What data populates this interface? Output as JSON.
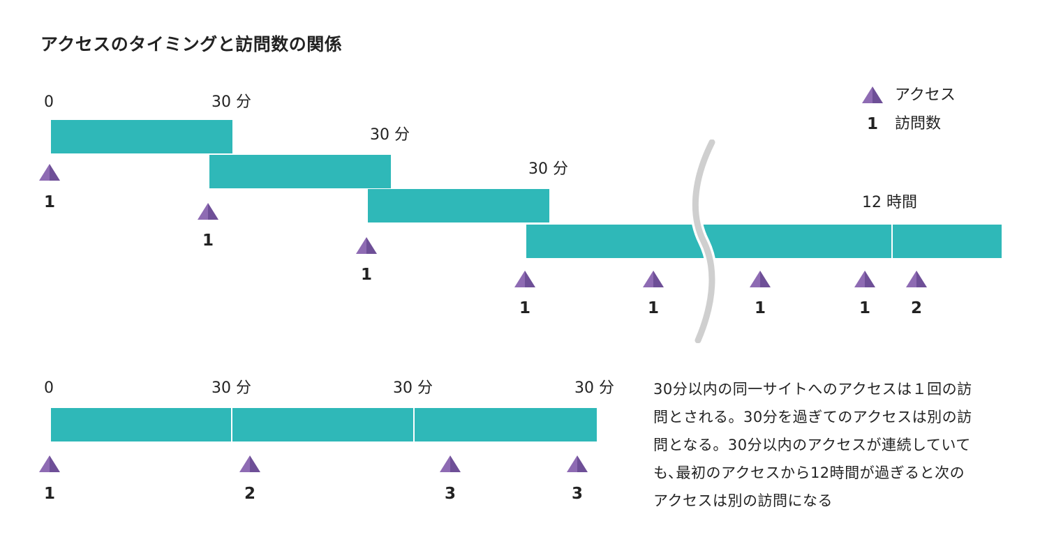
{
  "title": "アクセスのタイミングと訪問数の関係",
  "legend": {
    "access_label": "アクセス",
    "visit_symbol": "1",
    "visit_label": "訪問数",
    "triangle_color": "#8e6bb3",
    "triangle_shade": "#6e4f97"
  },
  "bar_color": "#2fb8b8",
  "top_diagram": {
    "labels": {
      "start": "0",
      "window1": "30 分",
      "window2": "30 分",
      "window3": "30 分",
      "window4": "12 時間"
    },
    "visits": [
      "1",
      "1",
      "1",
      "1",
      "1",
      "1",
      "1",
      "2"
    ]
  },
  "bottom_diagram": {
    "labels": {
      "start": "0",
      "window1": "30 分",
      "window2": "30 分",
      "window3": "30 分"
    },
    "visits": [
      "1",
      "2",
      "3",
      "3"
    ]
  },
  "note_lines": [
    "30分以内の同一サイトへのアクセスは１回の訪",
    "問とされる。30分を過ぎてのアクセスは別の訪",
    "問となる。30分以内のアクセスが連続していて",
    "も､最初のアクセスから12時間が過ぎると次の",
    "アクセスは別の訪問になる"
  ]
}
